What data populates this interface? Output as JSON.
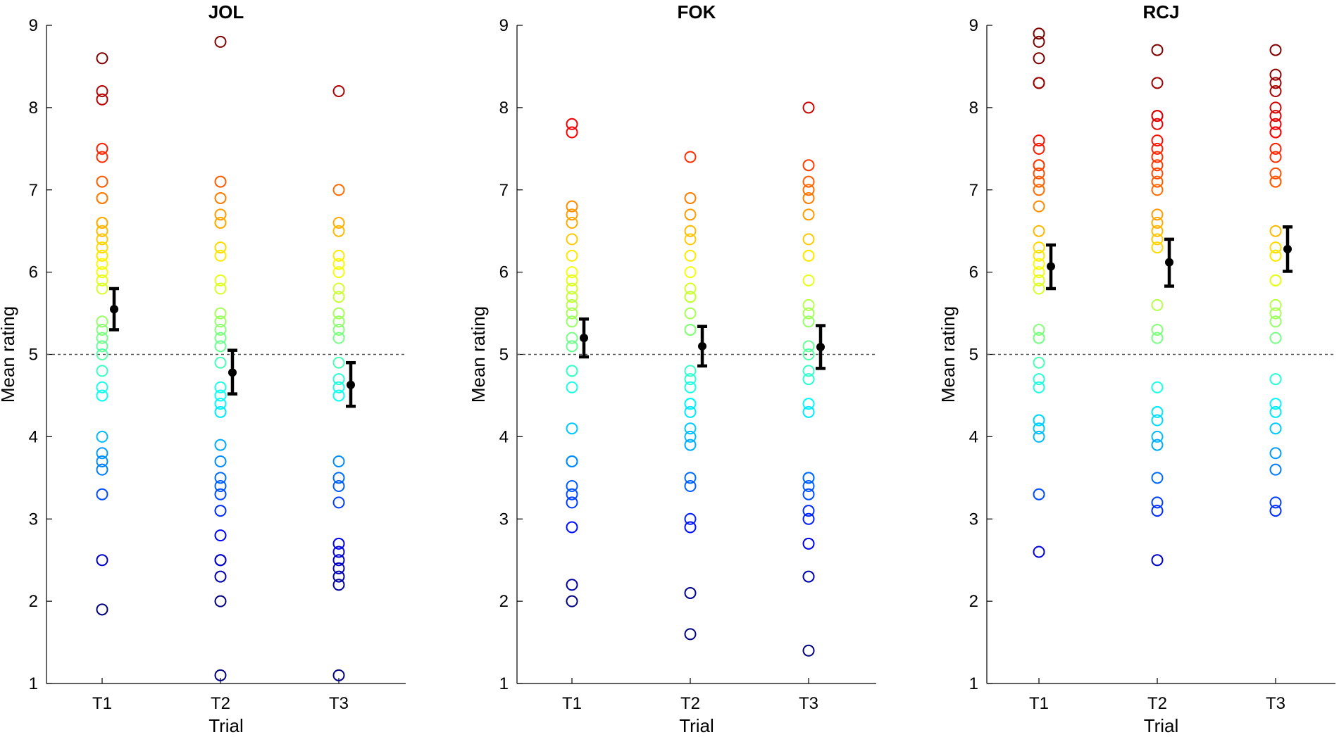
{
  "colors": {
    "mean": "#000000",
    "refline": "#555555",
    "colormap": "jet"
  },
  "chart_data": [
    {
      "type": "scatter",
      "title": "JOL",
      "xlabel": "Trial",
      "ylabel": "Mean rating",
      "categories": [
        "T1",
        "T2",
        "T3"
      ],
      "ylim": [
        1,
        9
      ],
      "yticks": [
        "1",
        "2",
        "3",
        "4",
        "5",
        "6",
        "7",
        "8",
        "9"
      ],
      "reference_line": 5,
      "series": [
        {
          "name": "T1",
          "values": [
            8.6,
            8.2,
            8.1,
            7.5,
            7.4,
            7.1,
            6.9,
            6.9,
            6.6,
            6.6,
            6.5,
            6.4,
            6.3,
            6.2,
            6.2,
            6.1,
            6.0,
            5.9,
            5.8,
            5.4,
            5.3,
            5.2,
            5.1,
            5.0,
            4.8,
            4.6,
            4.5,
            4.0,
            3.8,
            3.7,
            3.6,
            3.3,
            2.5,
            1.9
          ]
        },
        {
          "name": "T2",
          "values": [
            8.8,
            7.1,
            6.9,
            6.7,
            6.6,
            6.6,
            6.3,
            6.2,
            5.9,
            5.8,
            5.5,
            5.4,
            5.3,
            5.2,
            5.1,
            4.9,
            4.6,
            4.5,
            4.4,
            4.3,
            3.9,
            3.7,
            3.5,
            3.4,
            3.3,
            3.1,
            2.8,
            2.5,
            2.5,
            2.3,
            2.0,
            1.1
          ]
        },
        {
          "name": "T3",
          "values": [
            8.2,
            7.0,
            6.6,
            6.5,
            6.2,
            6.1,
            6.0,
            5.8,
            5.7,
            5.5,
            5.4,
            5.3,
            5.2,
            4.9,
            4.7,
            4.6,
            4.5,
            3.7,
            3.5,
            3.4,
            3.2,
            2.7,
            2.6,
            2.5,
            2.4,
            2.3,
            2.2,
            1.1
          ]
        }
      ],
      "means": [
        {
          "category": "T1",
          "mean": 5.55,
          "lower": 5.3,
          "upper": 5.8
        },
        {
          "category": "T2",
          "mean": 4.78,
          "lower": 4.52,
          "upper": 5.05
        },
        {
          "category": "T3",
          "mean": 4.63,
          "lower": 4.37,
          "upper": 4.9
        }
      ]
    },
    {
      "type": "scatter",
      "title": "FOK",
      "xlabel": "Trial",
      "ylabel": "Mean rating",
      "categories": [
        "T1",
        "T2",
        "T3"
      ],
      "ylim": [
        1,
        9
      ],
      "yticks": [
        "1",
        "2",
        "3",
        "4",
        "5",
        "6",
        "7",
        "8",
        "9"
      ],
      "reference_line": 5,
      "series": [
        {
          "name": "T1",
          "values": [
            7.8,
            7.7,
            6.8,
            6.7,
            6.6,
            6.4,
            6.2,
            6.0,
            5.9,
            5.8,
            5.7,
            5.6,
            5.5,
            5.4,
            5.2,
            5.1,
            4.8,
            4.8,
            4.6,
            4.1,
            3.7,
            3.7,
            3.4,
            3.3,
            3.2,
            2.9,
            2.2,
            2.0
          ]
        },
        {
          "name": "T2",
          "values": [
            7.4,
            6.9,
            6.7,
            6.5,
            6.4,
            6.2,
            6.0,
            5.8,
            5.7,
            5.7,
            5.5,
            5.3,
            5.3,
            4.8,
            4.7,
            4.6,
            4.4,
            4.4,
            4.3,
            4.1,
            4.0,
            3.9,
            3.5,
            3.4,
            3.0,
            2.9,
            2.1,
            1.6
          ]
        },
        {
          "name": "T3",
          "values": [
            8.0,
            7.3,
            7.1,
            7.0,
            6.9,
            6.7,
            6.4,
            6.2,
            6.2,
            5.9,
            5.6,
            5.5,
            5.4,
            5.1,
            5.0,
            4.8,
            4.7,
            4.4,
            4.3,
            3.5,
            3.5,
            3.4,
            3.3,
            3.1,
            3.0,
            2.7,
            2.3,
            1.4
          ]
        }
      ],
      "means": [
        {
          "category": "T1",
          "mean": 5.2,
          "lower": 4.97,
          "upper": 5.43
        },
        {
          "category": "T2",
          "mean": 5.1,
          "lower": 4.86,
          "upper": 5.34
        },
        {
          "category": "T3",
          "mean": 5.09,
          "lower": 4.83,
          "upper": 5.35
        }
      ]
    },
    {
      "type": "scatter",
      "title": "RCJ",
      "xlabel": "Trial",
      "ylabel": "Mean rating",
      "categories": [
        "T1",
        "T2",
        "T3"
      ],
      "ylim": [
        1,
        9
      ],
      "yticks": [
        "1",
        "2",
        "3",
        "4",
        "5",
        "6",
        "7",
        "8",
        "9"
      ],
      "reference_line": 5,
      "series": [
        {
          "name": "T1",
          "values": [
            8.9,
            8.8,
            8.6,
            8.3,
            8.3,
            7.6,
            7.5,
            7.3,
            7.3,
            7.2,
            7.1,
            7.0,
            6.8,
            6.5,
            6.3,
            6.2,
            6.1,
            6.0,
            5.9,
            5.8,
            5.3,
            5.2,
            5.2,
            4.9,
            4.7,
            4.6,
            4.2,
            4.2,
            4.1,
            4.0,
            3.3,
            2.6
          ]
        },
        {
          "name": "T2",
          "values": [
            8.7,
            8.3,
            7.9,
            7.9,
            7.8,
            7.6,
            7.5,
            7.4,
            7.3,
            7.2,
            7.1,
            7.0,
            6.7,
            6.6,
            6.5,
            6.4,
            6.3,
            5.6,
            5.3,
            5.2,
            4.6,
            4.3,
            4.2,
            4.0,
            3.9,
            3.5,
            3.2,
            3.1,
            2.5
          ]
        },
        {
          "name": "T3",
          "values": [
            8.7,
            8.4,
            8.3,
            8.2,
            8.0,
            7.9,
            7.8,
            7.7,
            7.7,
            7.5,
            7.4,
            7.2,
            7.1,
            7.1,
            6.5,
            6.3,
            6.2,
            6.2,
            5.9,
            5.9,
            5.6,
            5.5,
            5.4,
            5.2,
            4.7,
            4.4,
            4.3,
            4.1,
            3.8,
            3.6,
            3.2,
            3.1
          ]
        }
      ],
      "means": [
        {
          "category": "T1",
          "mean": 6.07,
          "lower": 5.8,
          "upper": 6.33
        },
        {
          "category": "T2",
          "mean": 6.12,
          "lower": 5.83,
          "upper": 6.4
        },
        {
          "category": "T3",
          "mean": 6.28,
          "lower": 6.01,
          "upper": 6.55
        }
      ]
    }
  ]
}
